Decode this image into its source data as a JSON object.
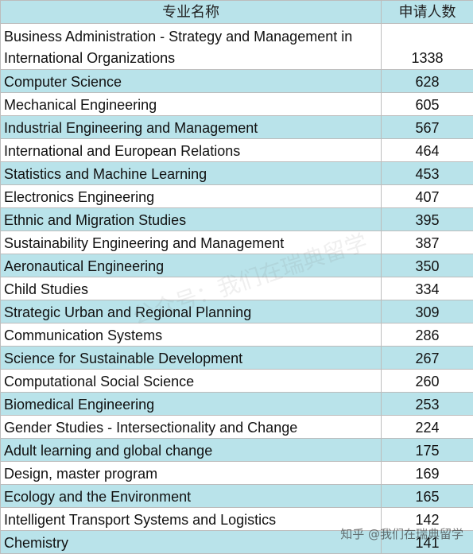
{
  "table": {
    "header": {
      "name": "专业名称",
      "count": "申请人数"
    },
    "rows": [
      {
        "name": "Business Administration - Strategy and Management in International Organizations",
        "count": "1338"
      },
      {
        "name": "Computer Science",
        "count": "628"
      },
      {
        "name": "Mechanical Engineering",
        "count": "605"
      },
      {
        "name": "Industrial Engineering and Management",
        "count": "567"
      },
      {
        "name": "International and European Relations",
        "count": "464"
      },
      {
        "name": "Statistics and Machine Learning",
        "count": "453"
      },
      {
        "name": "Electronics Engineering",
        "count": "407"
      },
      {
        "name": "Ethnic and Migration Studies",
        "count": "395"
      },
      {
        "name": "Sustainability Engineering and Management",
        "count": "387"
      },
      {
        "name": "Aeronautical Engineering",
        "count": "350"
      },
      {
        "name": "Child Studies",
        "count": "334"
      },
      {
        "name": "Strategic Urban and Regional Planning",
        "count": "309"
      },
      {
        "name": "Communication Systems",
        "count": "286"
      },
      {
        "name": "Science for Sustainable Development",
        "count": "267"
      },
      {
        "name": "Computational Social Science",
        "count": "260"
      },
      {
        "name": "Biomedical Engineering",
        "count": "253"
      },
      {
        "name": "Gender Studies - Intersectionality and Change",
        "count": "224"
      },
      {
        "name": "Adult learning and global change",
        "count": "175"
      },
      {
        "name": "Design, master program",
        "count": "169"
      },
      {
        "name": "Ecology and the Environment",
        "count": "165"
      },
      {
        "name": "Intelligent Transport Systems and Logistics",
        "count": "142"
      },
      {
        "name": "Chemistry",
        "count": "141"
      }
    ]
  },
  "watermark": {
    "corner_text": "知乎 @我们在瑞典留学",
    "diagonal_text": "公众号：我们在瑞典留学"
  },
  "colors": {
    "stripe": "#b9e3ea",
    "grid": "#bcbcbc"
  }
}
